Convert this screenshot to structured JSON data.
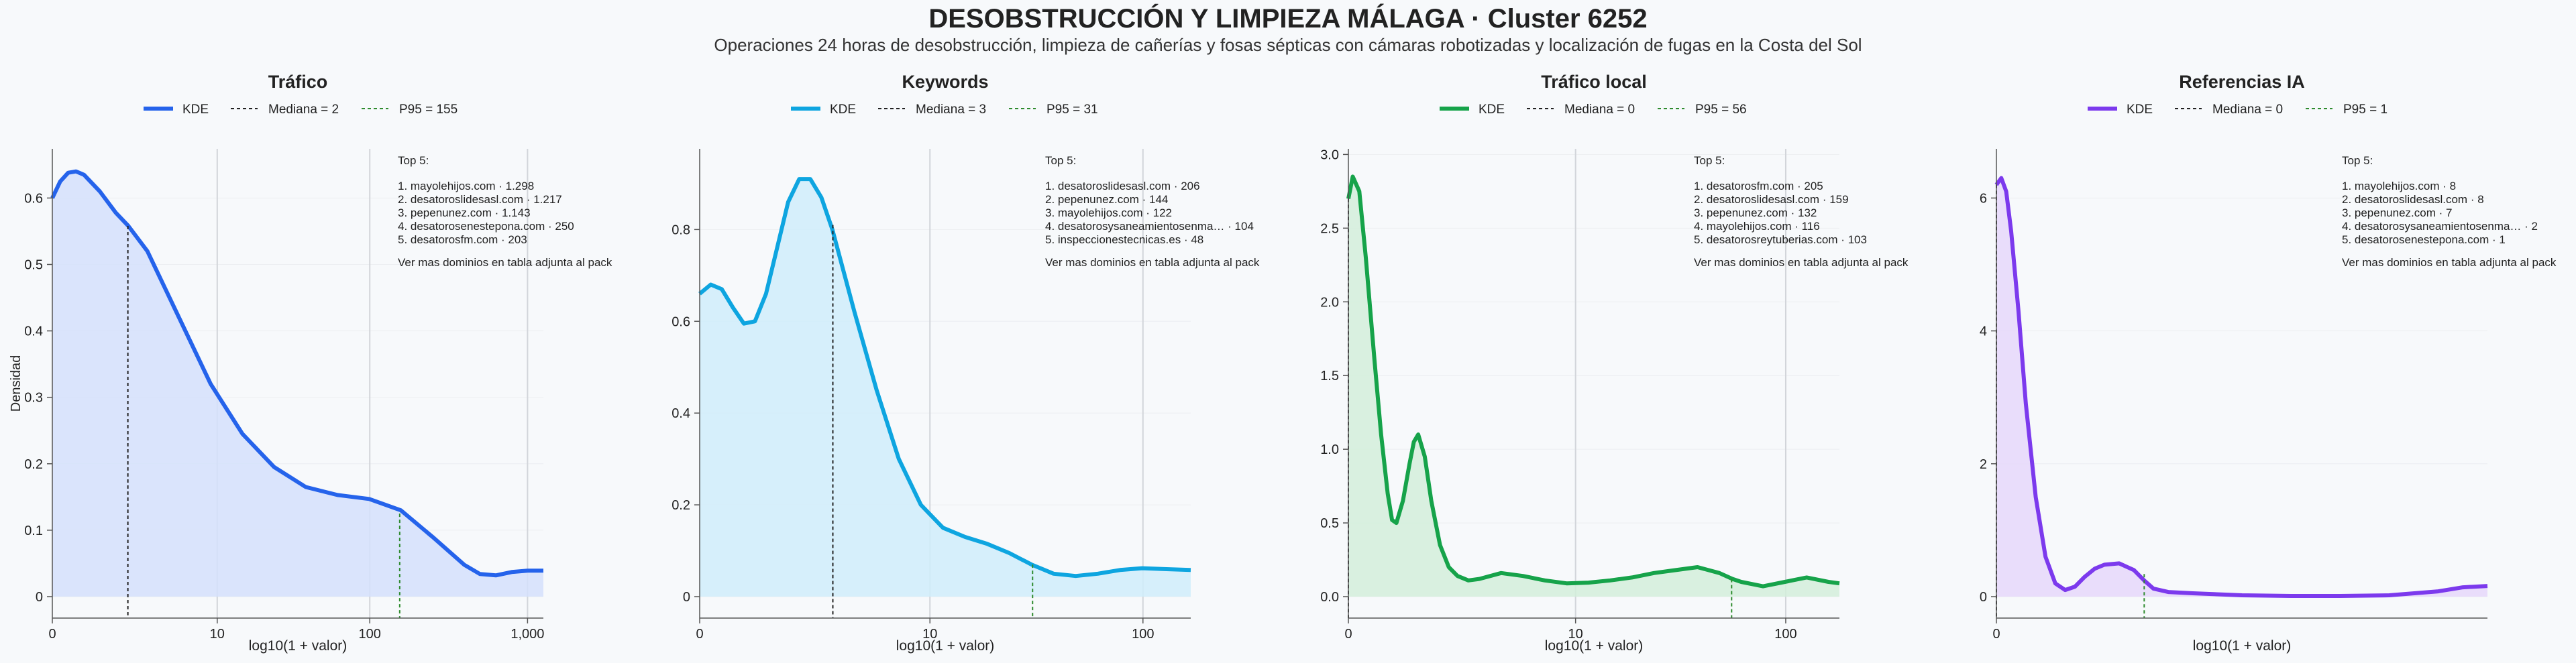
{
  "title": "DESOBSTRUCCIÓN Y LIMPIEZA MÁLAGA · Cluster 6252",
  "subtitle": "Operaciones 24 horas de desobstrucción, limpieza de cañerías y fosas sépticas con cámaras robotizadas y localización de fugas en la Costa del Sol",
  "xlabel": "log10(1 + valor)",
  "ylabel": "Densidad",
  "colors": {
    "median": "#222222",
    "p95": "#2e8b2e"
  },
  "chart_data": [
    {
      "type": "area",
      "panel_title": "Tráfico",
      "legend": [
        "KDE",
        "Mediana = 2",
        "P95 = 155"
      ],
      "color": "#2563eb",
      "fill": "#d5e0fb",
      "xticks": [
        {
          "v": 0,
          "label": "0"
        },
        {
          "v": 1.041,
          "label": "10"
        },
        {
          "v": 2.004,
          "label": "100"
        },
        {
          "v": 3.0,
          "label": "1,000"
        }
      ],
      "yticks": [
        0,
        0.1,
        0.2,
        0.3,
        0.4,
        0.5,
        0.6
      ],
      "xlim": [
        0,
        3.1
      ],
      "ylim": [
        0,
        0.67
      ],
      "x": [
        0,
        0.05,
        0.1,
        0.15,
        0.2,
        0.3,
        0.4,
        0.48,
        0.6,
        0.8,
        1.0,
        1.2,
        1.4,
        1.6,
        1.8,
        2.0,
        2.2,
        2.4,
        2.6,
        2.7,
        2.8,
        2.9,
        3.0,
        3.1
      ],
      "y": [
        0.6,
        0.625,
        0.638,
        0.64,
        0.635,
        0.61,
        0.578,
        0.558,
        0.52,
        0.42,
        0.32,
        0.245,
        0.195,
        0.165,
        0.153,
        0.147,
        0.13,
        0.09,
        0.048,
        0.034,
        0.032,
        0.037,
        0.039,
        0.039
      ],
      "median": {
        "x": 0.477,
        "y": 0.558
      },
      "p95": {
        "x": 2.193,
        "y": 0.125
      },
      "top5_title": "Top 5:",
      "top5": [
        "1. mayolehijos.com · 1.298",
        "2. desatoroslidesasl.com · 1.217",
        "3. pepenunez.com · 1.143",
        "4. desatorosenestepona.com · 250",
        "5. desatorosfm.com · 203"
      ],
      "note": "Ver mas dominios en tabla adjunta al pack"
    },
    {
      "type": "area",
      "panel_title": "Keywords",
      "legend": [
        "KDE",
        "Mediana = 3",
        "P95 = 31"
      ],
      "color": "#0ea5e0",
      "fill": "#d0edfa",
      "xticks": [
        {
          "v": 0,
          "label": "0"
        },
        {
          "v": 1.041,
          "label": "10"
        },
        {
          "v": 2.004,
          "label": "100"
        }
      ],
      "yticks": [
        0,
        0.2,
        0.4,
        0.6,
        0.8
      ],
      "xlim": [
        0,
        2.22
      ],
      "ylim": [
        0,
        0.97
      ],
      "x": [
        0,
        0.05,
        0.1,
        0.15,
        0.2,
        0.25,
        0.3,
        0.35,
        0.4,
        0.45,
        0.5,
        0.55,
        0.6,
        0.7,
        0.8,
        0.9,
        1.0,
        1.1,
        1.2,
        1.3,
        1.4,
        1.5,
        1.6,
        1.7,
        1.8,
        1.9,
        2.0,
        2.1,
        2.22
      ],
      "y": [
        0.66,
        0.68,
        0.67,
        0.63,
        0.595,
        0.6,
        0.66,
        0.76,
        0.86,
        0.91,
        0.91,
        0.87,
        0.8,
        0.62,
        0.45,
        0.3,
        0.2,
        0.15,
        0.13,
        0.115,
        0.095,
        0.07,
        0.05,
        0.045,
        0.05,
        0.058,
        0.062,
        0.06,
        0.058
      ],
      "median": {
        "x": 0.602,
        "y": 0.81
      },
      "p95": {
        "x": 1.505,
        "y": 0.07
      },
      "top5_title": "Top 5:",
      "top5": [
        "1. desatoroslidesasl.com · 206",
        "2. pepenunez.com · 144",
        "3. mayolehijos.com · 122",
        "4. desatorosysaneamientosenma… · 104",
        "5. inspeccionestecnicas.es · 48"
      ],
      "note": "Ver mas dominios en tabla adjunta al pack"
    },
    {
      "type": "area",
      "panel_title": "Tráfico local",
      "legend": [
        "KDE",
        "Mediana = 0",
        "P95 = 56"
      ],
      "color": "#16a34a",
      "fill": "#d3eedb",
      "xticks": [
        {
          "v": 0,
          "label": "0"
        },
        {
          "v": 1.041,
          "label": "10"
        },
        {
          "v": 2.004,
          "label": "100"
        }
      ],
      "yticks": [
        0,
        0.5,
        1.0,
        1.5,
        2.0,
        2.5,
        3.0
      ],
      "ytick_labels": [
        "0.0",
        "0.5",
        "1.0",
        "1.5",
        "2.0",
        "2.5",
        "3.0"
      ],
      "xlim": [
        0,
        2.25
      ],
      "ylim": [
        0,
        3.02
      ],
      "x": [
        0,
        0.02,
        0.05,
        0.08,
        0.12,
        0.15,
        0.18,
        0.2,
        0.22,
        0.25,
        0.28,
        0.3,
        0.32,
        0.35,
        0.38,
        0.42,
        0.46,
        0.5,
        0.55,
        0.6,
        0.7,
        0.8,
        0.9,
        1.0,
        1.1,
        1.2,
        1.3,
        1.4,
        1.5,
        1.6,
        1.7,
        1.76,
        1.8,
        1.9,
        2.0,
        2.1,
        2.2,
        2.25
      ],
      "y": [
        2.7,
        2.85,
        2.75,
        2.3,
        1.6,
        1.1,
        0.7,
        0.52,
        0.5,
        0.65,
        0.9,
        1.05,
        1.1,
        0.95,
        0.65,
        0.35,
        0.2,
        0.14,
        0.11,
        0.12,
        0.16,
        0.14,
        0.11,
        0.09,
        0.095,
        0.11,
        0.13,
        0.16,
        0.18,
        0.2,
        0.16,
        0.12,
        0.1,
        0.07,
        0.1,
        0.13,
        0.1,
        0.09
      ],
      "median": {
        "x": 0,
        "y": 2.7
      },
      "p95": {
        "x": 1.756,
        "y": 0.12
      },
      "top5_title": "Top 5:",
      "top5": [
        "1. desatorosfm.com · 205",
        "2. desatoroslidesasl.com · 159",
        "3. pepenunez.com · 132",
        "4. mayolehijos.com · 116",
        "5. desatorosreytuberias.com · 103"
      ],
      "note": "Ver mas dominios en tabla adjunta al pack"
    },
    {
      "type": "area",
      "panel_title": "Referencias IA",
      "legend": [
        "KDE",
        "Mediana = 0",
        "P95 = 1"
      ],
      "color": "#7c3aed",
      "fill": "#e6d8fa",
      "xticks": [
        {
          "v": 0,
          "label": "0"
        }
      ],
      "yticks": [
        0,
        2,
        4,
        6
      ],
      "xlim": [
        0,
        1.0
      ],
      "ylim": [
        0,
        6.7
      ],
      "x": [
        0,
        0.01,
        0.02,
        0.03,
        0.045,
        0.06,
        0.08,
        0.1,
        0.12,
        0.14,
        0.16,
        0.18,
        0.2,
        0.22,
        0.25,
        0.28,
        0.3,
        0.32,
        0.35,
        0.4,
        0.5,
        0.6,
        0.7,
        0.8,
        0.9,
        0.95,
        1.0
      ],
      "y": [
        6.2,
        6.3,
        6.1,
        5.5,
        4.3,
        2.9,
        1.5,
        0.6,
        0.2,
        0.1,
        0.15,
        0.3,
        0.42,
        0.48,
        0.5,
        0.4,
        0.25,
        0.12,
        0.07,
        0.05,
        0.02,
        0.01,
        0.01,
        0.02,
        0.08,
        0.14,
        0.16
      ],
      "median": {
        "x": 0,
        "y": 6.2
      },
      "p95": {
        "x": 0.301,
        "y": 0.34
      },
      "top5_title": "Top 5:",
      "top5": [
        "1. mayolehijos.com · 8",
        "2. desatoroslidesasl.com · 8",
        "3. pepenunez.com · 7",
        "4. desatorosysaneamientosenma… · 2",
        "5. desatorosenestepona.com · 1"
      ],
      "note": "Ver mas dominios en tabla adjunta al pack"
    }
  ]
}
